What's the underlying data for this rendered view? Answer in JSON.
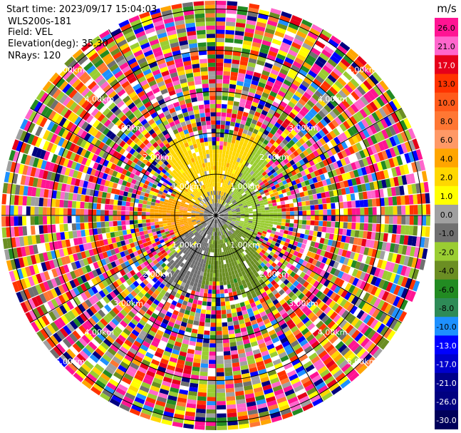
{
  "header": {
    "start_time": "Start time: 2023/09/17 15:04:03",
    "instrument": "WLS200s-181",
    "field": "Field: VEL",
    "elevation": "Elevation(deg): 35.30",
    "nrays": "NRays: 120"
  },
  "colorbar": {
    "unit": "m/s",
    "labels": [
      "26.0",
      "21.0",
      "17.0",
      "13.0",
      "10.0",
      "8.0",
      "6.0",
      "4.0",
      "2.0",
      "1.0",
      "0.0",
      "-1.0",
      "-2.0",
      "-4.0",
      "-6.0",
      "-8.0",
      "-10.0",
      "-13.0",
      "-17.0",
      "-21.0",
      "-26.0",
      "-30.0"
    ],
    "colors": [
      "#ff1493",
      "#ff66cc",
      "#e6001a",
      "#ff3300",
      "#ff5a1a",
      "#ff7733",
      "#ff9966",
      "#ffa500",
      "#ffd700",
      "#ffff00",
      "#a0a0a0",
      "#707070",
      "#9acd32",
      "#6b8e23",
      "#228b22",
      "#2e8b57",
      "#1e90ff",
      "#0000ff",
      "#0000cd",
      "#00008b",
      "#000080",
      "#00005a"
    ]
  },
  "chart_data": {
    "type": "ppi",
    "field": "VEL",
    "unit": "m/s",
    "nrays": 120,
    "elevation_deg": 35.3,
    "range_rings_km": [
      1.0,
      2.0,
      3.0,
      4.0,
      5.0
    ],
    "ring_labels": [
      "1.00km",
      "2.00km",
      "3.00km",
      "4.00km",
      "5.00km"
    ],
    "max_range_km": 5.2,
    "azimuth_spokes_deg": [
      0,
      30,
      60,
      90,
      120,
      150,
      180,
      210,
      240,
      270,
      300,
      330
    ],
    "clean_region_km": 2.1,
    "sectors": [
      {
        "name": "north",
        "az_from": 300,
        "az_to": 30,
        "velocity": 2.0
      },
      {
        "name": "west",
        "az_from": 240,
        "az_to": 300,
        "velocity": 4.0
      },
      {
        "name": "east",
        "az_from": 30,
        "az_to": 120,
        "velocity": -2.0
      },
      {
        "name": "south",
        "az_from": 120,
        "az_to": 190,
        "velocity": -4.0
      },
      {
        "name": "southwest",
        "az_from": 190,
        "az_to": 240,
        "velocity": -1.0
      }
    ]
  }
}
